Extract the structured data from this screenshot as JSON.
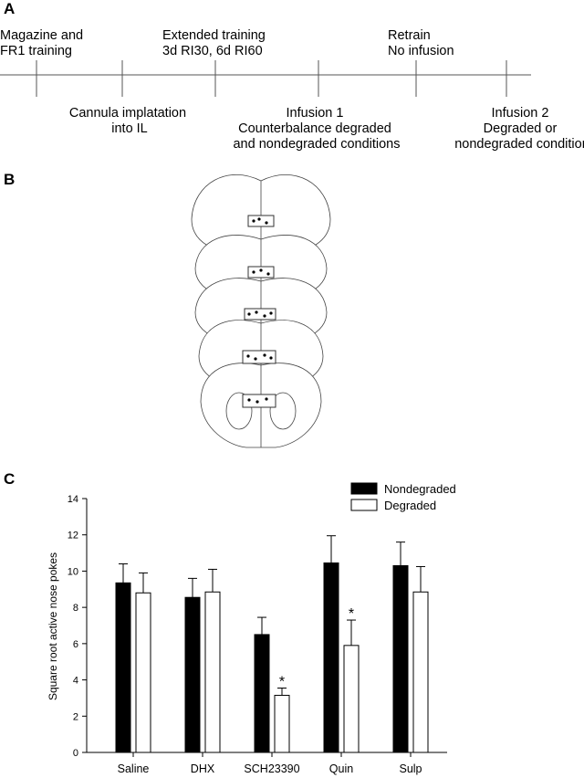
{
  "panels": {
    "a": "A",
    "b": "B",
    "c": "C"
  },
  "timeline": {
    "above": [
      [
        "Magazine and",
        "FR1 training"
      ],
      [
        "Extended training",
        "3d RI30, 6d RI60"
      ],
      [
        "Retrain",
        "No infusion"
      ]
    ],
    "below": [
      [
        "Cannula implatation",
        "into IL"
      ],
      [
        "Infusion 1",
        "Counterbalance degraded",
        "and nondegraded conditions"
      ],
      [
        "Infusion 2",
        "Degraded or",
        "nondegraded condition"
      ]
    ]
  },
  "chart_data": {
    "type": "bar",
    "y_label": "Square root active nose pokes",
    "categories": [
      "Saline",
      "DHX",
      "SCH23390",
      "Quin",
      "Sulp"
    ],
    "series": [
      {
        "name": "Nondegraded",
        "color": "#000000",
        "values": [
          9.35,
          8.55,
          6.5,
          10.45,
          10.3
        ],
        "errors": [
          1.05,
          1.05,
          0.95,
          1.5,
          1.3
        ]
      },
      {
        "name": "Degraded",
        "color": "#ffffff",
        "values": [
          8.8,
          8.85,
          3.15,
          5.9,
          8.85
        ],
        "errors": [
          1.1,
          1.25,
          0.4,
          1.4,
          1.4
        ]
      }
    ],
    "annotations": [
      {
        "text": "*",
        "series": "Degraded",
        "category": "SCH23390"
      },
      {
        "text": "*",
        "series": "Degraded",
        "category": "Quin"
      }
    ],
    "ylim": [
      0,
      14
    ],
    "yticks": [
      0,
      2,
      4,
      6,
      8,
      10,
      12,
      14
    ],
    "legend": "top-right"
  }
}
